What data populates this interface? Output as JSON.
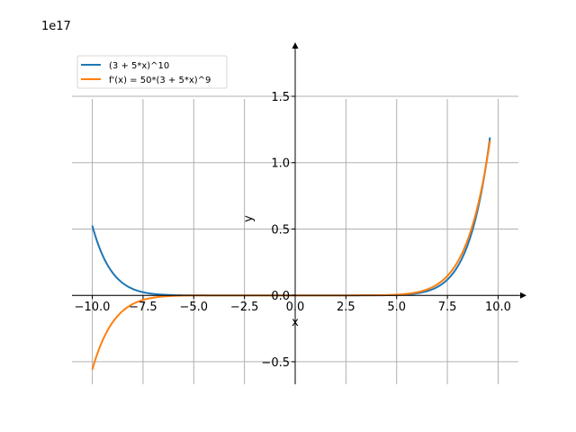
{
  "chart_data": {
    "type": "line",
    "title": "",
    "xlabel": "x",
    "ylabel": "y",
    "y_scale_label": "1e17",
    "xlim": [
      -11,
      11
    ],
    "ylim": [
      -0.67,
      1.9
    ],
    "y_unit_multiplier": "1e17",
    "grid": true,
    "legend_position": "top-left",
    "xticks": [
      -10,
      -7.5,
      -5,
      -2.5,
      0,
      2.5,
      5,
      7.5,
      10
    ],
    "xtick_labels": [
      "−10.0",
      "−7.5",
      "−5.0",
      "−2.5",
      "0.0",
      "2.5",
      "5.0",
      "7.5",
      "10.0"
    ],
    "yticks": [
      -0.5,
      0,
      0.5,
      1.0,
      1.5
    ],
    "ytick_labels": [
      "−0.5",
      "0.0",
      "0.5",
      "1.0",
      "1.5"
    ],
    "x_domain": [
      -10,
      9.6
    ],
    "series": [
      {
        "name": "(3 + 5*x)^10",
        "expression": "(3 + 5*x)^10",
        "color": "#1f77b4"
      },
      {
        "name": "f'(x) = 50*(3 + 5*x)^9",
        "expression": "50*(3 + 5*x)^9",
        "color": "#ff7f0e"
      }
    ]
  }
}
